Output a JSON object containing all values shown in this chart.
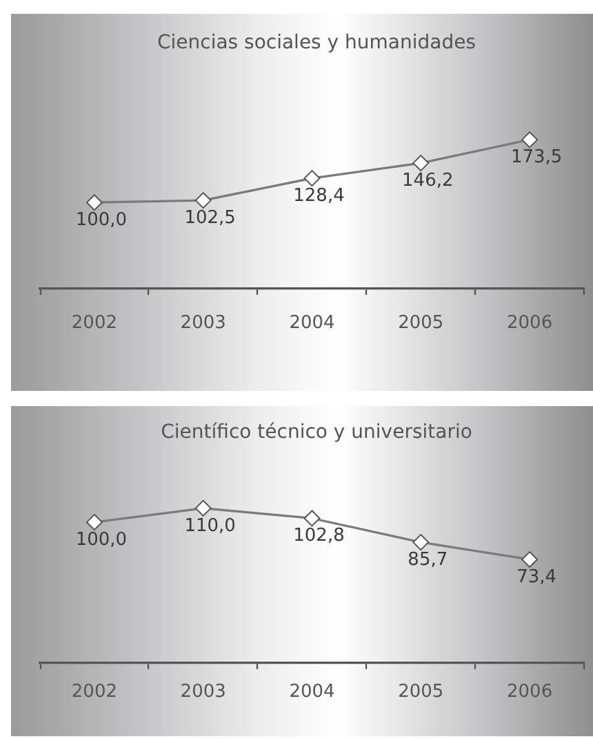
{
  "chart_data": [
    {
      "type": "line",
      "title": "Ciencias sociales y humanidades",
      "categories": [
        "2002",
        "2003",
        "2004",
        "2005",
        "2006"
      ],
      "series": [
        {
          "color": "#7a7a7a",
          "values": [
            100.0,
            102.5,
            128.4,
            146.2,
            173.5
          ],
          "value_labels": [
            "100,0",
            "102,5",
            "128,4",
            "146,2",
            "173,5"
          ]
        }
      ],
      "marker": "diamond",
      "grid": false,
      "legend": false,
      "tick_labels": "x"
    },
    {
      "type": "line",
      "title": "Científico técnico y universitario",
      "categories": [
        "2002",
        "2003",
        "2004",
        "2005",
        "2006"
      ],
      "series": [
        {
          "color": "#7a7a7a",
          "values": [
            100.0,
            110.0,
            102.8,
            85.7,
            73.4
          ],
          "value_labels": [
            "100,0",
            "110,0",
            "102,8",
            "85,7",
            "73,4"
          ]
        }
      ],
      "marker": "diamond",
      "grid": false,
      "legend": false,
      "tick_labels": "x"
    }
  ]
}
